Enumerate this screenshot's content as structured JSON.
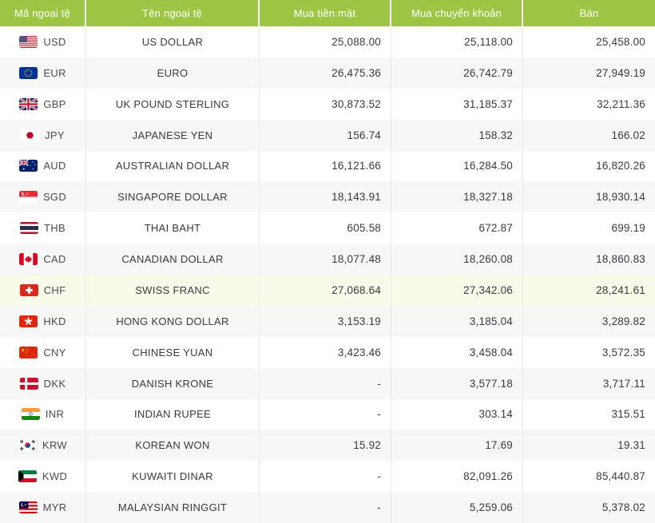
{
  "colors": {
    "header_bg": "#9FC545",
    "header_text": "#FFFFFF",
    "row_bg": "#FFFFFF",
    "row_alt_bg": "#F7F7F7",
    "row_highlight_bg": "#F8FAEA",
    "divider": "#EBEBEB",
    "text": "#3A3A40",
    "code_text": "#4A4A52"
  },
  "table": {
    "columns": [
      {
        "key": "code",
        "label": "Mã ngoại tệ"
      },
      {
        "key": "name",
        "label": "Tên ngoại tệ"
      },
      {
        "key": "cash_buy",
        "label": "Mua tiền mặt"
      },
      {
        "key": "transfer_buy",
        "label": "Mua chuyển khoản"
      },
      {
        "key": "sell",
        "label": "Bán"
      }
    ],
    "rows": [
      {
        "code": "USD",
        "flag": "us-flag-icon",
        "name": "US DOLLAR",
        "cash_buy": "25,088.00",
        "transfer_buy": "25,118.00",
        "sell": "25,458.00",
        "highlight": false
      },
      {
        "code": "EUR",
        "flag": "eu-flag-icon",
        "name": "EURO",
        "cash_buy": "26,475.36",
        "transfer_buy": "26,742.79",
        "sell": "27,949.19",
        "highlight": false
      },
      {
        "code": "GBP",
        "flag": "uk-flag-icon",
        "name": "UK POUND STERLING",
        "cash_buy": "30,873.52",
        "transfer_buy": "31,185.37",
        "sell": "32,211.36",
        "highlight": false
      },
      {
        "code": "JPY",
        "flag": "japan-flag-icon",
        "name": "JAPANESE YEN",
        "cash_buy": "156.74",
        "transfer_buy": "158.32",
        "sell": "166.02",
        "highlight": false
      },
      {
        "code": "AUD",
        "flag": "australia-flag-icon",
        "name": "AUSTRALIAN DOLLAR",
        "cash_buy": "16,121.66",
        "transfer_buy": "16,284.50",
        "sell": "16,820.26",
        "highlight": false
      },
      {
        "code": "SGD",
        "flag": "singapore-flag-icon",
        "name": "SINGAPORE DOLLAR",
        "cash_buy": "18,143.91",
        "transfer_buy": "18,327.18",
        "sell": "18,930.14",
        "highlight": false
      },
      {
        "code": "THB",
        "flag": "thailand-flag-icon",
        "name": "THAI BAHT",
        "cash_buy": "605.58",
        "transfer_buy": "672.87",
        "sell": "699.19",
        "highlight": false
      },
      {
        "code": "CAD",
        "flag": "canada-flag-icon",
        "name": "CANADIAN DOLLAR",
        "cash_buy": "18,077.48",
        "transfer_buy": "18,260.08",
        "sell": "18,860.83",
        "highlight": false
      },
      {
        "code": "CHF",
        "flag": "switzerland-flag-icon",
        "name": "SWISS FRANC",
        "cash_buy": "27,068.64",
        "transfer_buy": "27,342.06",
        "sell": "28,241.61",
        "highlight": true
      },
      {
        "code": "HKD",
        "flag": "hongkong-flag-icon",
        "name": "HONG KONG DOLLAR",
        "cash_buy": "3,153.19",
        "transfer_buy": "3,185.04",
        "sell": "3,289.82",
        "highlight": false
      },
      {
        "code": "CNY",
        "flag": "china-flag-icon",
        "name": "CHINESE YUAN",
        "cash_buy": "3,423.46",
        "transfer_buy": "3,458.04",
        "sell": "3,572.35",
        "highlight": false
      },
      {
        "code": "DKK",
        "flag": "denmark-flag-icon",
        "name": "DANISH KRONE",
        "cash_buy": "-",
        "transfer_buy": "3,577.18",
        "sell": "3,717.11",
        "highlight": false
      },
      {
        "code": "INR",
        "flag": "india-flag-icon",
        "name": "INDIAN RUPEE",
        "cash_buy": "-",
        "transfer_buy": "303.14",
        "sell": "315.51",
        "highlight": false
      },
      {
        "code": "KRW",
        "flag": "korea-flag-icon",
        "name": "KOREAN WON",
        "cash_buy": "15.92",
        "transfer_buy": "17.69",
        "sell": "19.31",
        "highlight": false
      },
      {
        "code": "KWD",
        "flag": "kuwait-flag-icon",
        "name": "KUWAITI DINAR",
        "cash_buy": "-",
        "transfer_buy": "82,091.26",
        "sell": "85,440.87",
        "highlight": false
      },
      {
        "code": "MYR",
        "flag": "malaysia-flag-icon",
        "name": "MALAYSIAN RINGGIT",
        "cash_buy": "-",
        "transfer_buy": "5,259.06",
        "sell": "5,378.02",
        "highlight": false
      }
    ]
  }
}
